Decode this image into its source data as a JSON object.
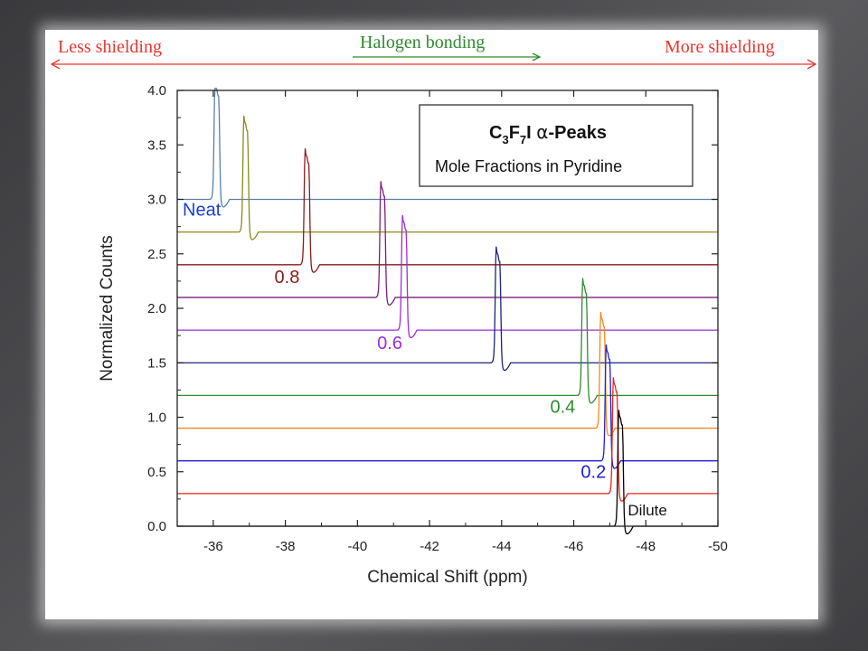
{
  "annotations": {
    "less_shielding": "Less shielding",
    "more_shielding": "More shielding",
    "halogen_bonding": "Halogen bonding",
    "colors": {
      "red_arrow": "#e8362f",
      "green_arrow": "#2e8b2e"
    }
  },
  "chart_data": {
    "type": "line",
    "xlabel": "Chemical Shift (ppm)",
    "ylabel": "Normalized Counts",
    "xlim": [
      -35,
      -50
    ],
    "x_reversed": true,
    "ylim": [
      0,
      4.0
    ],
    "x_ticks": [
      -36,
      -38,
      -40,
      -42,
      -44,
      -46,
      -48,
      -50
    ],
    "x_tick_labels": [
      "-36",
      "-38",
      "-40",
      "-42",
      "-44",
      "-46",
      "-48",
      "-50"
    ],
    "y_ticks": [
      0.0,
      0.5,
      1.0,
      1.5,
      2.0,
      2.5,
      3.0,
      3.5,
      4.0
    ],
    "y_tick_labels": [
      "0.0",
      "0.5",
      "1.0",
      "1.5",
      "2.0",
      "2.5",
      "3.0",
      "3.5",
      "4.0"
    ],
    "grid": false,
    "legend_box": {
      "title_parts": [
        "C",
        "3",
        "F",
        "7",
        "I ",
        "α",
        "-Peaks"
      ],
      "subtitle": "Mole Fractions in Pyridine",
      "placement": "top-right"
    },
    "series": [
      {
        "name": "Neat",
        "color": "#5b7fa6",
        "baseline": 3.0,
        "peak_x": -36.1,
        "peak_height": 1.0,
        "label_color": "#1a3fd6"
      },
      {
        "color": "#8a8a1e",
        "baseline": 2.7,
        "peak_x": -36.9,
        "peak_height": 0.98
      },
      {
        "name": "0.8",
        "color": "#8b1a1a",
        "baseline": 2.4,
        "peak_x": -38.6,
        "peak_height": 0.98,
        "label_color": "#8b1a1a"
      },
      {
        "color": "#7a1f78",
        "baseline": 2.1,
        "peak_x": -40.7,
        "peak_height": 0.98
      },
      {
        "name": "0.6",
        "color": "#9b2fd6",
        "baseline": 1.8,
        "peak_x": -41.3,
        "peak_height": 0.97,
        "label_color": "#9b2fd6"
      },
      {
        "color": "#1a237e",
        "baseline": 1.5,
        "peak_x": -43.9,
        "peak_height": 0.98
      },
      {
        "name": "0.4",
        "color": "#2e8b2e",
        "baseline": 1.2,
        "peak_x": -46.3,
        "peak_height": 0.99,
        "label_color": "#2e8b2e"
      },
      {
        "color": "#f08a1c",
        "baseline": 0.9,
        "peak_x": -46.8,
        "peak_height": 0.98
      },
      {
        "name": "0.2",
        "color": "#1d1dd8",
        "baseline": 0.6,
        "peak_x": -46.95,
        "peak_height": 0.98,
        "label_color": "#1d1dd8"
      },
      {
        "color": "#e8241c",
        "baseline": 0.3,
        "peak_x": -47.15,
        "peak_height": 0.98
      },
      {
        "name": "Dilute",
        "color": "#000000",
        "baseline": 0.0,
        "peak_x": -47.3,
        "peak_height": 0.98,
        "label_color": "#111111"
      }
    ]
  }
}
